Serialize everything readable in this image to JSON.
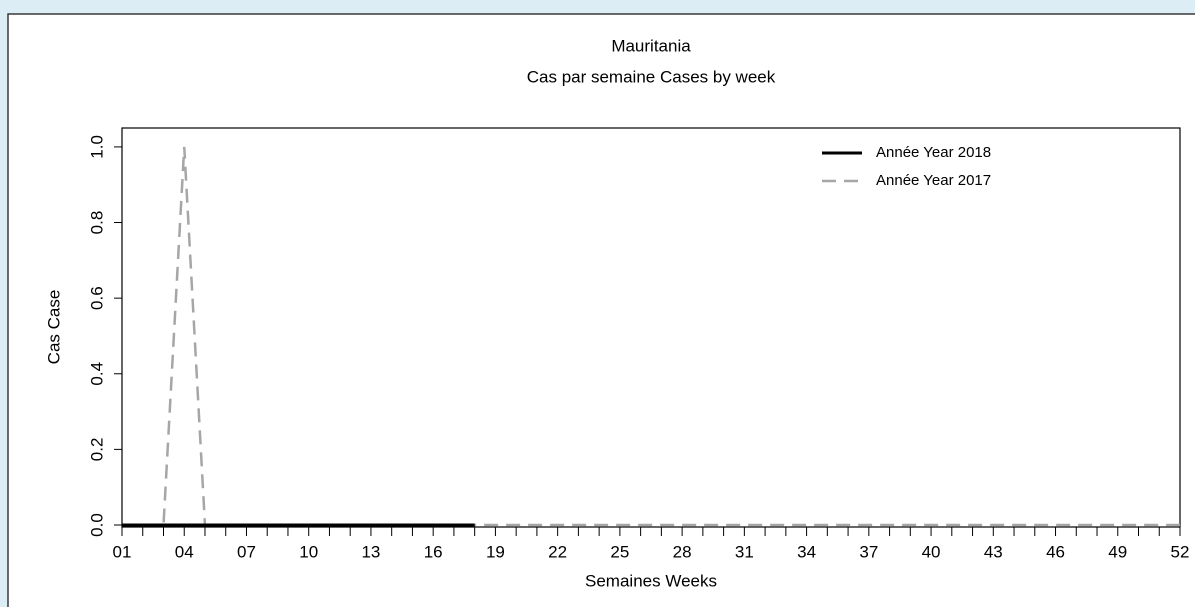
{
  "chart_data": {
    "type": "line",
    "title": "Mauritania",
    "subtitle": "Cas par semaine Cases by week",
    "x_label": "Semaines Weeks",
    "y_label": "Cas Case",
    "categories": [
      "01",
      null,
      null,
      "04",
      null,
      null,
      "07",
      null,
      null,
      "10",
      null,
      null,
      "13",
      null,
      null,
      "16",
      null,
      null,
      "19",
      null,
      null,
      "22",
      null,
      null,
      "25",
      null,
      null,
      "28",
      null,
      null,
      "31",
      null,
      null,
      "34",
      null,
      null,
      "37",
      null,
      null,
      "40",
      null,
      null,
      "43",
      null,
      null,
      "46",
      null,
      null,
      "49",
      null,
      null,
      "52"
    ],
    "series": [
      {
        "name": "Année Year 2018",
        "color": "#000000",
        "dash": false,
        "values": [
          0,
          0,
          0,
          0,
          0,
          0,
          0,
          0,
          0,
          0,
          0,
          0,
          0,
          0,
          0,
          0,
          0,
          0,
          null,
          null,
          null,
          null,
          null,
          null,
          null,
          null,
          null,
          null,
          null,
          null,
          null,
          null,
          null,
          null,
          null,
          null,
          null,
          null,
          null,
          null,
          null,
          null,
          null,
          null,
          null,
          null,
          null,
          null,
          null,
          null,
          null,
          null
        ]
      },
      {
        "name": "Année Year 2017",
        "color": "#a6a6a6",
        "dash": true,
        "values": [
          0,
          0,
          0,
          1,
          0,
          0,
          0,
          0,
          0,
          0,
          0,
          0,
          0,
          0,
          0,
          0,
          0,
          0,
          0,
          0,
          0,
          0,
          0,
          0,
          0,
          0,
          0,
          0,
          0,
          0,
          0,
          0,
          0,
          0,
          0,
          0,
          0,
          0,
          0,
          0,
          0,
          0,
          0,
          0,
          0,
          0,
          0,
          0,
          0,
          0,
          0,
          0
        ]
      }
    ],
    "ylim": [
      0,
      1.05
    ],
    "yticks": [
      {
        "value": 0,
        "label": "0.0"
      },
      {
        "value": 0.2,
        "label": "0.2"
      },
      {
        "value": 0.4,
        "label": "0.4"
      },
      {
        "value": 0.6,
        "label": "0.6"
      },
      {
        "value": 0.8,
        "label": "0.8"
      },
      {
        "value": 1,
        "label": "1.0"
      }
    ],
    "legend": "top-right"
  }
}
